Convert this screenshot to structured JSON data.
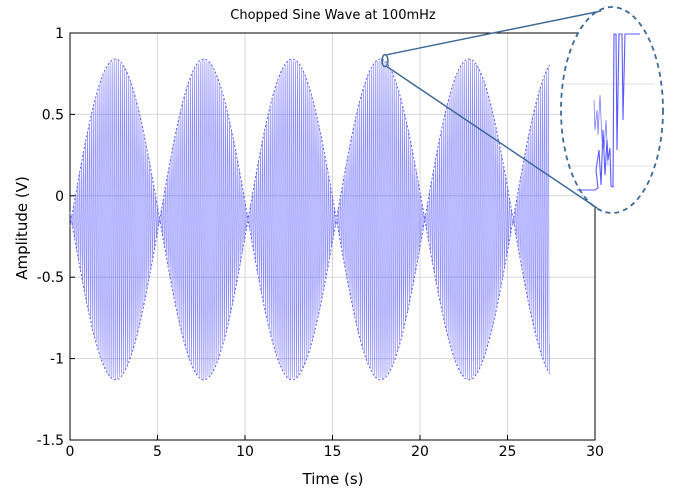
{
  "chart_data": {
    "type": "line",
    "title": "Chopped Sine Wave at 100mHz",
    "xlabel": "Time (s)",
    "ylabel": "Amplitude (V)",
    "xlim": [
      0,
      30
    ],
    "ylim": [
      -1.5,
      1
    ],
    "xticks": [
      "0",
      "5",
      "10",
      "15",
      "20",
      "25",
      "30"
    ],
    "yticks": [
      "1",
      "0.5",
      "0",
      "-0.5",
      "-1",
      "-1.5"
    ],
    "grid": true,
    "series": [
      {
        "color": "#5b5bff",
        "x_start": 0,
        "x_end": 27.4,
        "envelope_period_s": 5.05,
        "envelope_peaks_x": [
          2.6,
          7.6,
          12.7,
          17.8,
          22.8
        ],
        "envelope_max": 0.84,
        "envelope_min": -1.13,
        "envelope_mid": -0.145,
        "carrier_cycles_per_second": 9
      }
    ],
    "inset": {
      "type": "zoom-ellipse",
      "source_region_x": 18,
      "source_region_y": 0.83,
      "description_marker": "magnified view"
    },
    "colors": {
      "signal": "#5b5bff",
      "zoom_outline": "#3d6a97",
      "grid": "#d7d7d7"
    }
  }
}
